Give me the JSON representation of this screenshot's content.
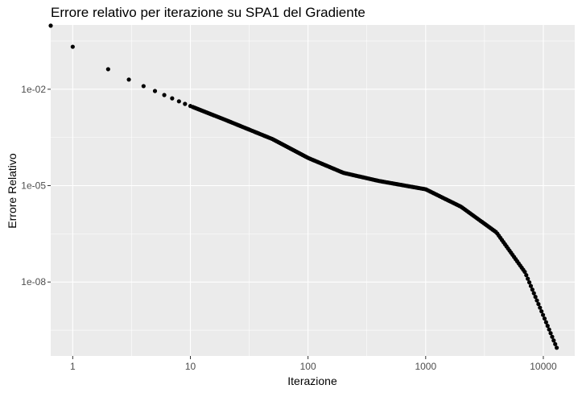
{
  "chart_data": {
    "type": "scatter",
    "title": "Errore relativo per iterazione su SPA1 del Gradiente",
    "xlabel": "Iterazione",
    "ylabel": "Errore Relativo",
    "x_scale": "log10",
    "y_scale": "log10",
    "xlim": [
      0.65,
      18500
    ],
    "ylim": [
      5e-11,
      1.0
    ],
    "x_ticks": [
      {
        "value": 1,
        "label": "1"
      },
      {
        "value": 10,
        "label": "10"
      },
      {
        "value": 100,
        "label": "100"
      },
      {
        "value": 1000,
        "label": "1000"
      },
      {
        "value": 10000,
        "label": "10000"
      }
    ],
    "y_ticks": [
      {
        "value": 0.01,
        "label": "1e-02"
      },
      {
        "value": 1e-05,
        "label": "1e-05"
      },
      {
        "value": 1e-08,
        "label": "1e-08"
      }
    ],
    "grid": true,
    "background": "#ebebeb",
    "point_color": "#000000",
    "curve_points": [
      [
        0.65,
        0.95
      ],
      [
        1,
        0.21
      ],
      [
        2,
        0.042
      ],
      [
        3,
        0.02
      ],
      [
        4,
        0.0125
      ],
      [
        5,
        0.0088
      ],
      [
        6,
        0.0066
      ],
      [
        7,
        0.0052
      ],
      [
        8,
        0.0042
      ],
      [
        9,
        0.0035
      ],
      [
        10,
        0.003
      ],
      [
        20,
        0.0011
      ],
      [
        50,
        0.00028
      ],
      [
        100,
        7.3e-05
      ],
      [
        200,
        2.5e-05
      ],
      [
        400,
        1.4e-05
      ],
      [
        1000,
        7.7e-06
      ],
      [
        2000,
        2.2e-06
      ],
      [
        4000,
        3.5e-07
      ],
      [
        7000,
        2e-08
      ],
      [
        10000,
        9e-10
      ],
      [
        13000,
        9e-11
      ]
    ]
  }
}
